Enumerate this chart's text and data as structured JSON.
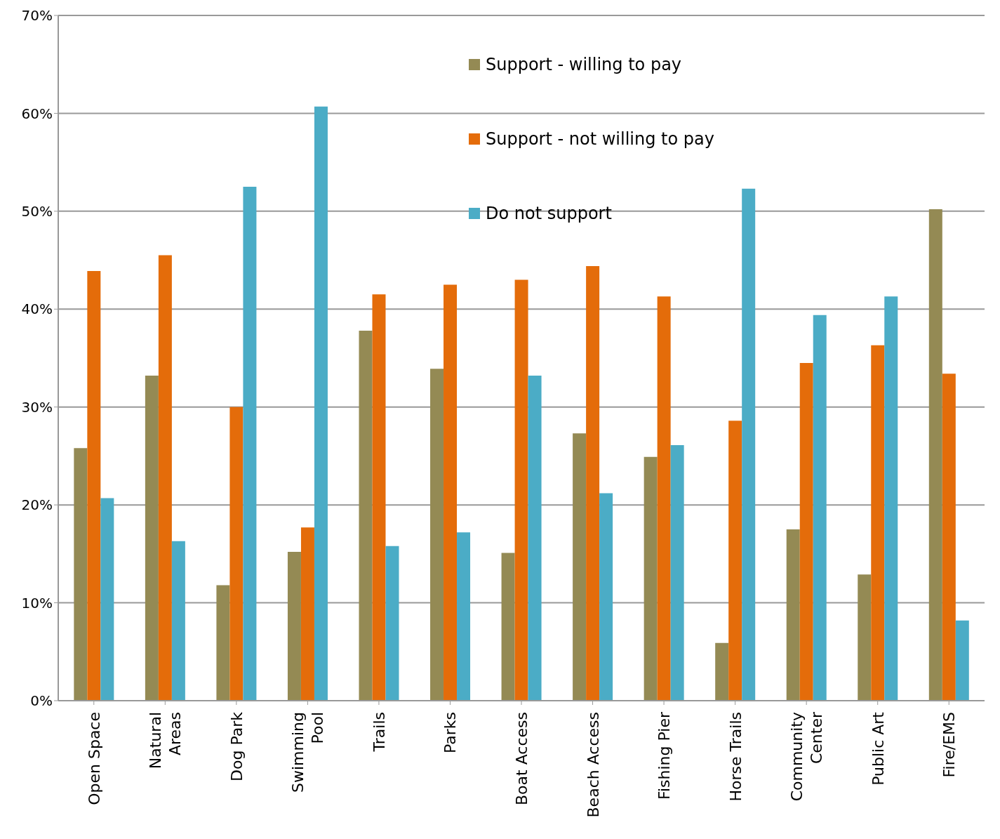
{
  "chart_data": {
    "type": "bar",
    "categories": [
      "Open Space",
      "Natural Areas",
      "Dog Park",
      "Swimming Pool",
      "Trails",
      "Parks",
      "Boat Access",
      "Beach Access",
      "Fishing Pier",
      "Horse Trails",
      "Community Center",
      "Public Art",
      "Fire/EMS"
    ],
    "series": [
      {
        "name": "Support - willing to pay",
        "color": "#948a54",
        "values": [
          25.8,
          33.2,
          11.8,
          15.2,
          37.8,
          33.9,
          15.1,
          27.3,
          24.9,
          5.9,
          17.5,
          12.9,
          50.2
        ]
      },
      {
        "name": "Support - not willing to pay",
        "color": "#e46c0a",
        "values": [
          43.9,
          45.5,
          30.0,
          17.7,
          41.5,
          42.5,
          43.0,
          44.4,
          41.3,
          28.6,
          34.5,
          36.3,
          33.4
        ]
      },
      {
        "name": "Do not support",
        "color": "#4bacc6",
        "values": [
          20.7,
          16.3,
          52.5,
          60.7,
          15.8,
          17.2,
          33.2,
          21.2,
          26.1,
          52.3,
          39.4,
          41.3,
          8.2
        ]
      }
    ],
    "ylim": [
      0,
      70
    ],
    "yticks": [
      {
        "value": 0,
        "label": "0%"
      },
      {
        "value": 10,
        "label": "10%"
      },
      {
        "value": 20,
        "label": "20%"
      },
      {
        "value": 30,
        "label": "30%"
      },
      {
        "value": 40,
        "label": "40%"
      },
      {
        "value": 50,
        "label": "50%"
      },
      {
        "value": 60,
        "label": "60%"
      },
      {
        "value": 70,
        "label": "70%"
      }
    ],
    "grid": "y",
    "legend": "top"
  }
}
